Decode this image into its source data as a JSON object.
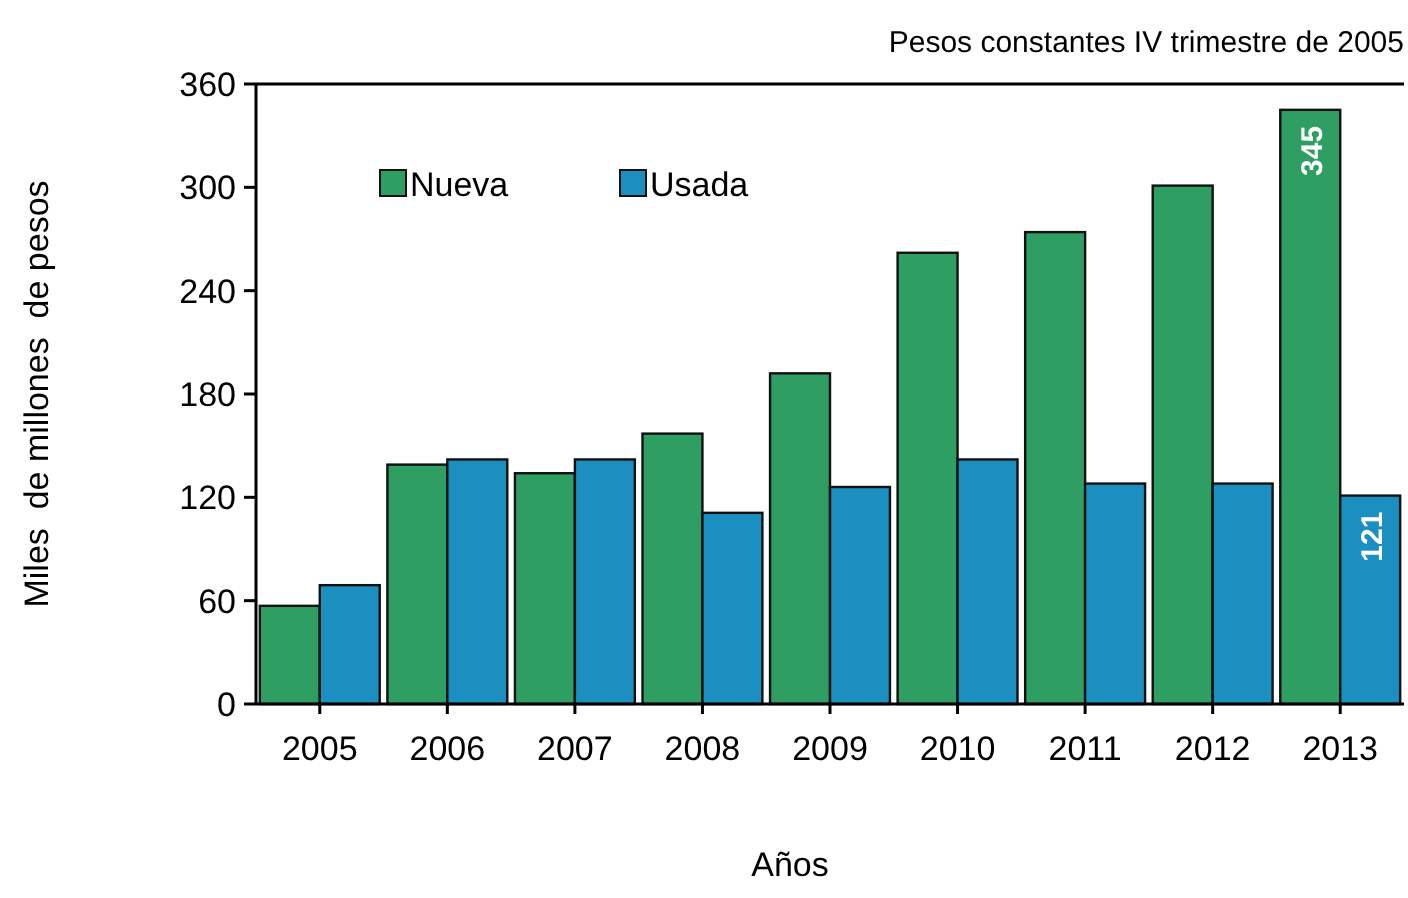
{
  "chart_data": {
    "type": "bar",
    "title": "Pesos constantes IV trimestre de 2005",
    "xlabel": "Años",
    "ylabel": "Miles  de millones  de pesos",
    "categories": [
      "2005",
      "2006",
      "2007",
      "2008",
      "2009",
      "2010",
      "2011",
      "2012",
      "2013"
    ],
    "series": [
      {
        "name": "Nueva",
        "color": "#2e9e63",
        "values": [
          57,
          139,
          134,
          157,
          192,
          262,
          274,
          301,
          345
        ],
        "value_labels": [
          null,
          null,
          null,
          null,
          null,
          null,
          null,
          null,
          "345"
        ]
      },
      {
        "name": "Usada",
        "color": "#1a8fc0",
        "values": [
          69,
          142,
          142,
          111,
          126,
          142,
          128,
          128,
          121
        ],
        "value_labels": [
          null,
          null,
          null,
          null,
          null,
          null,
          null,
          null,
          "121"
        ]
      }
    ],
    "ylim": [
      0,
      360
    ],
    "yticks": [
      0,
      60,
      120,
      180,
      240,
      300,
      360
    ],
    "legend": "top left",
    "grid": false
  }
}
